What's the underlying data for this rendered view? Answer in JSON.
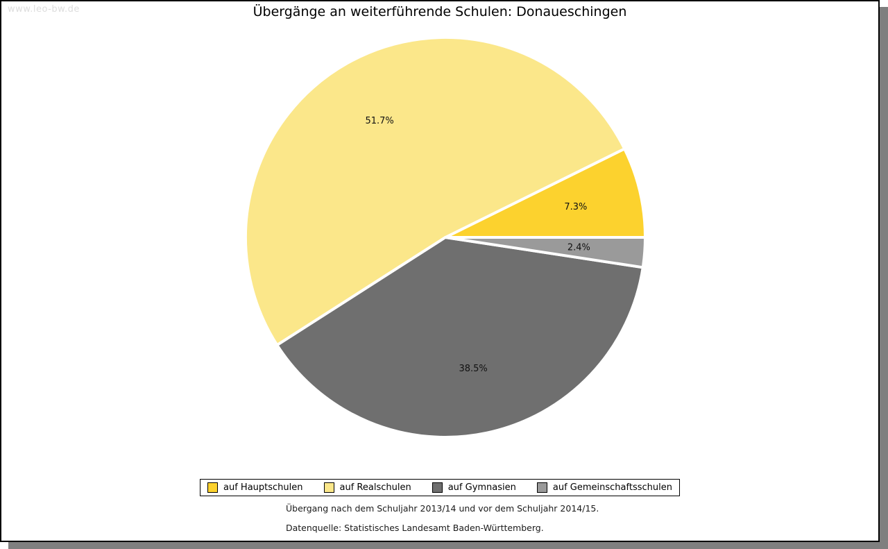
{
  "watermark": "www.leo-bw.de",
  "title": "Übergänge an weiterführende Schulen: Donaueschingen",
  "chart_data": {
    "type": "pie",
    "title": "Übergänge an weiterführende Schulen: Donaueschingen",
    "unit": "percent",
    "start_angle_deg": 0,
    "direction": "counterclockwise",
    "legend_position": "bottom",
    "slices": [
      {
        "label": "auf Hauptschulen",
        "value": 7.3,
        "display": "7.3%",
        "color": "#fcd22e"
      },
      {
        "label": "auf Realschulen",
        "value": 51.7,
        "display": "51.7%",
        "color": "#fbe78a"
      },
      {
        "label": "auf Gymnasien",
        "value": 38.5,
        "display": "38.5%",
        "color": "#6f6f6f"
      },
      {
        "label": "auf Gemeinschaftsschulen",
        "value": 2.4,
        "display": "2.4%",
        "color": "#9a9a9a"
      }
    ]
  },
  "legend_order": [
    0,
    1,
    2,
    3
  ],
  "footnotes": {
    "period": "Übergang nach dem Schuljahr 2013/14 und vor dem Schuljahr 2014/15.",
    "source": "Datenquelle: Statistisches Landesamt Baden-Württemberg."
  },
  "colors": {
    "shadow": "#7f7f7f",
    "border": "#000000",
    "watermark_text": "#dddddd"
  }
}
